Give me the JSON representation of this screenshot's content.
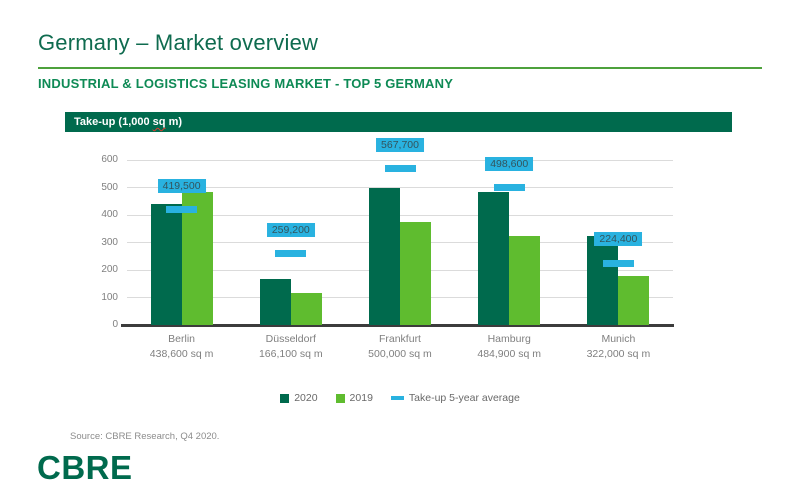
{
  "header": {
    "title": "Germany – Market overview",
    "subtitle": "INDUSTRIAL & LOGISTICS LEASING MARKET - TOP 5 GERMANY"
  },
  "chart_header": {
    "label_prefix": "Take-up (1,000 ",
    "label_sq": "sq",
    "label_suffix": " m)"
  },
  "chart_data": {
    "type": "bar",
    "title": "Take-up (1,000 sq m)",
    "categories": [
      "Berlin",
      "Düsseldorf",
      "Frankfurt",
      "Hamburg",
      "Munich"
    ],
    "category_sublabels": [
      "438,600 sq m",
      "166,100 sq m",
      "500,000 sq m",
      "484,900 sq m",
      "322,000 sq m"
    ],
    "series": [
      {
        "name": "2020",
        "color": "#006A4D",
        "values": [
          438.6,
          166.1,
          500.0,
          484.9,
          322.0
        ]
      },
      {
        "name": "2019",
        "color": "#5FBC2F",
        "values": [
          485,
          115,
          375,
          325,
          180
        ]
      }
    ],
    "average_markers": {
      "name": "Take-up 5-year average",
      "color": "#29B2E0",
      "values": [
        419.5,
        259.2,
        567.7,
        498.6,
        224.4
      ],
      "labels": [
        "419,500",
        "259,200",
        "567,700",
        "498,600",
        "224,400"
      ]
    },
    "ylim": [
      0,
      600
    ],
    "yticks": [
      0,
      100,
      200,
      300,
      400,
      500,
      600
    ],
    "grid": true,
    "legend_position": "bottom"
  },
  "footer": {
    "source": "Source: CBRE Research, Q4 2020.",
    "logo": "CBRE"
  },
  "colors": {
    "dark_green": "#006A4D",
    "light_green": "#5FBC2F",
    "accent_blue": "#29B2E0",
    "title_green": "#0F6B4F",
    "subtitle_green": "#0E8A55",
    "rule_green": "#4EA13C"
  }
}
